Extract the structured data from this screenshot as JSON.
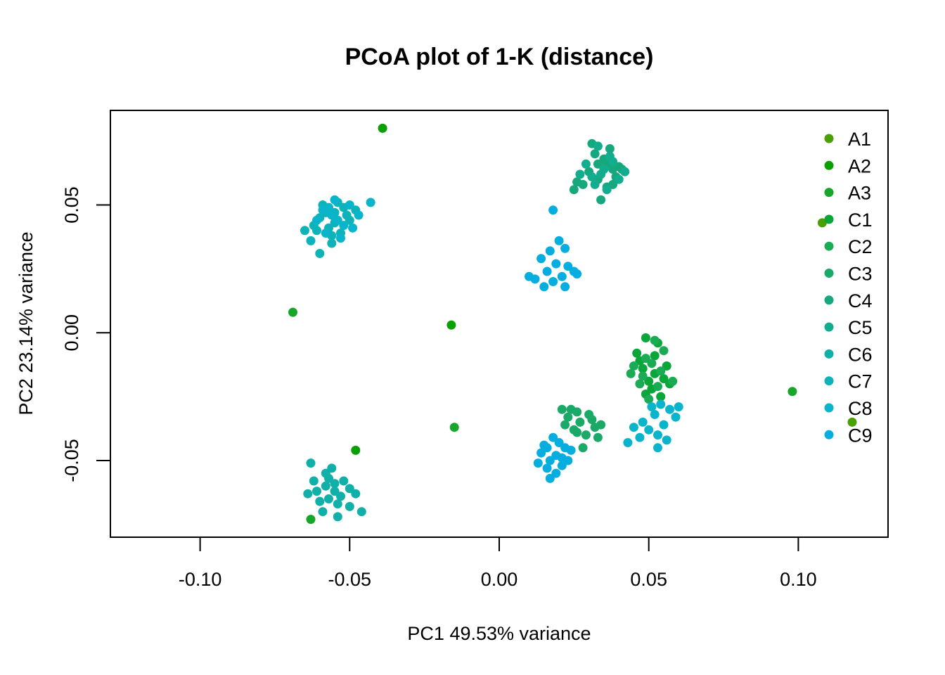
{
  "chart_data": {
    "type": "scatter",
    "title": "PCoA plot of 1-K (distance)",
    "xlabel": "PC1  49.53% variance",
    "ylabel": "PC2  23.14% variance",
    "xlim": [
      -0.13,
      0.13
    ],
    "ylim": [
      -0.08,
      0.087
    ],
    "x_ticks": [
      -0.1,
      -0.05,
      0.0,
      0.05,
      0.1
    ],
    "x_tick_labels": [
      "-0.10",
      "-0.05",
      "0.00",
      "0.05",
      "0.10"
    ],
    "y_ticks": [
      -0.05,
      0.0,
      0.05
    ],
    "y_tick_labels": [
      "-0.05",
      "0.00",
      "0.05"
    ],
    "grid": false,
    "legend_position": "top-right",
    "series": [
      {
        "name": "A1",
        "color": "#4a9f05",
        "points": [
          [
            0.108,
            0.043
          ],
          [
            0.118,
            -0.035
          ]
        ]
      },
      {
        "name": "A2",
        "color": "#0aa000",
        "points": [
          [
            -0.039,
            0.08
          ],
          [
            -0.016,
            0.003
          ],
          [
            -0.048,
            -0.046
          ]
        ]
      },
      {
        "name": "A3",
        "color": "#17a52a",
        "points": [
          [
            -0.069,
            0.008
          ],
          [
            0.098,
            -0.023
          ],
          [
            -0.063,
            -0.073
          ],
          [
            -0.015,
            -0.037
          ]
        ]
      },
      {
        "name": "C1",
        "color": "#0ba63a",
        "points": [
          [
            0.049,
            -0.002
          ],
          [
            0.052,
            -0.009
          ],
          [
            0.048,
            -0.014
          ],
          [
            0.055,
            -0.018
          ],
          [
            0.051,
            -0.022
          ],
          [
            0.047,
            -0.011
          ],
          [
            0.053,
            -0.004
          ],
          [
            0.056,
            -0.013
          ],
          [
            0.05,
            -0.019
          ],
          [
            0.054,
            -0.025
          ],
          [
            0.046,
            -0.008
          ],
          [
            0.052,
            -0.016
          ],
          [
            0.057,
            -0.02
          ],
          [
            0.049,
            -0.024
          ]
        ]
      },
      {
        "name": "C2",
        "color": "#1cab55",
        "points": [
          [
            0.045,
            -0.013
          ],
          [
            0.051,
            -0.012
          ],
          [
            0.053,
            -0.021
          ],
          [
            0.048,
            -0.017
          ],
          [
            0.055,
            -0.007
          ],
          [
            0.05,
            -0.026
          ],
          [
            0.044,
            -0.016
          ],
          [
            0.058,
            -0.019
          ],
          [
            0.052,
            -0.003
          ],
          [
            0.047,
            -0.02
          ],
          [
            0.054,
            -0.015
          ],
          [
            0.049,
            -0.01
          ]
        ]
      },
      {
        "name": "C3",
        "color": "#1aa966",
        "points": [
          [
            0.024,
            -0.03
          ],
          [
            0.027,
            -0.035
          ],
          [
            0.03,
            -0.032
          ],
          [
            0.022,
            -0.036
          ],
          [
            0.025,
            -0.038
          ],
          [
            0.029,
            -0.04
          ],
          [
            0.032,
            -0.037
          ],
          [
            0.021,
            -0.03
          ],
          [
            0.026,
            -0.031
          ],
          [
            0.033,
            -0.041
          ],
          [
            0.028,
            -0.045
          ],
          [
            0.023,
            -0.033
          ],
          [
            0.031,
            -0.034
          ],
          [
            0.034,
            -0.036
          ],
          [
            0.026,
            -0.039
          ]
        ]
      },
      {
        "name": "C4",
        "color": "#16a87c",
        "points": [
          [
            0.031,
            0.074
          ],
          [
            0.035,
            0.068
          ],
          [
            0.038,
            0.064
          ],
          [
            0.033,
            0.06
          ],
          [
            0.036,
            0.057
          ],
          [
            0.028,
            0.058
          ],
          [
            0.025,
            0.056
          ],
          [
            0.034,
            0.052
          ],
          [
            0.039,
            0.061
          ],
          [
            0.04,
            0.065
          ],
          [
            0.032,
            0.07
          ],
          [
            0.037,
            0.072
          ],
          [
            0.03,
            0.063
          ],
          [
            0.036,
            0.066
          ],
          [
            0.041,
            0.064
          ],
          [
            0.026,
            0.059
          ],
          [
            0.033,
            0.066
          ],
          [
            0.038,
            0.058
          ]
        ]
      },
      {
        "name": "C5",
        "color": "#12ad8e",
        "points": [
          [
            0.034,
            0.062
          ],
          [
            0.029,
            0.066
          ],
          [
            0.037,
            0.069
          ],
          [
            0.032,
            0.058
          ],
          [
            0.035,
            0.064
          ],
          [
            0.04,
            0.06
          ],
          [
            0.031,
            0.061
          ],
          [
            0.036,
            0.056
          ],
          [
            0.033,
            0.073
          ],
          [
            0.038,
            0.067
          ],
          [
            0.042,
            0.063
          ],
          [
            0.027,
            0.062
          ]
        ]
      },
      {
        "name": "C6",
        "color": "#10b0a8",
        "points": [
          [
            -0.063,
            -0.051
          ],
          [
            -0.058,
            -0.055
          ],
          [
            -0.055,
            -0.059
          ],
          [
            -0.061,
            -0.062
          ],
          [
            -0.057,
            -0.065
          ],
          [
            -0.052,
            -0.058
          ],
          [
            -0.054,
            -0.067
          ],
          [
            -0.059,
            -0.07
          ],
          [
            -0.05,
            -0.061
          ],
          [
            -0.056,
            -0.053
          ],
          [
            -0.062,
            -0.058
          ],
          [
            -0.053,
            -0.064
          ],
          [
            -0.048,
            -0.063
          ],
          [
            -0.06,
            -0.066
          ],
          [
            -0.055,
            -0.062
          ],
          [
            -0.058,
            -0.06
          ],
          [
            -0.05,
            -0.068
          ],
          [
            -0.057,
            -0.057
          ],
          [
            -0.046,
            -0.07
          ],
          [
            -0.054,
            -0.072
          ],
          [
            -0.064,
            -0.063
          ]
        ]
      },
      {
        "name": "C7",
        "color": "#0db3b8",
        "points": [
          [
            -0.058,
            0.047
          ],
          [
            -0.055,
            0.043
          ],
          [
            -0.061,
            0.04
          ],
          [
            -0.052,
            0.049
          ],
          [
            -0.056,
            0.038
          ],
          [
            -0.06,
            0.045
          ],
          [
            -0.054,
            0.051
          ],
          [
            -0.05,
            0.044
          ],
          [
            -0.057,
            0.041
          ],
          [
            -0.062,
            0.042
          ],
          [
            -0.053,
            0.039
          ],
          [
            -0.059,
            0.05
          ],
          [
            -0.055,
            0.047
          ],
          [
            -0.063,
            0.036
          ],
          [
            -0.051,
            0.046
          ],
          [
            -0.065,
            0.04
          ],
          [
            -0.048,
            0.048
          ],
          [
            -0.056,
            0.035
          ],
          [
            -0.06,
            0.031
          ]
        ]
      },
      {
        "name": "C8",
        "color": "#0ab5cc",
        "points": [
          [
            -0.056,
            0.046
          ],
          [
            -0.052,
            0.042
          ],
          [
            -0.059,
            0.048
          ],
          [
            -0.054,
            0.044
          ],
          [
            -0.058,
            0.039
          ],
          [
            -0.05,
            0.05
          ],
          [
            -0.055,
            0.052
          ],
          [
            -0.061,
            0.044
          ],
          [
            -0.047,
            0.046
          ],
          [
            -0.043,
            0.051
          ],
          [
            -0.057,
            0.049
          ],
          [
            -0.053,
            0.037
          ],
          [
            -0.049,
            0.041
          ],
          [
            0.052,
            -0.032
          ],
          [
            0.055,
            -0.036
          ],
          [
            0.05,
            -0.038
          ],
          [
            0.057,
            -0.03
          ],
          [
            0.053,
            -0.04
          ],
          [
            0.048,
            -0.035
          ],
          [
            0.056,
            -0.042
          ],
          [
            0.051,
            -0.029
          ],
          [
            0.059,
            -0.033
          ],
          [
            0.045,
            -0.037
          ],
          [
            0.054,
            -0.028
          ],
          [
            0.047,
            -0.041
          ],
          [
            0.06,
            -0.029
          ],
          [
            0.043,
            -0.043
          ],
          [
            0.053,
            -0.045
          ]
        ]
      },
      {
        "name": "C9",
        "color": "#06aee0",
        "points": [
          [
            0.02,
            0.036
          ],
          [
            0.017,
            0.032
          ],
          [
            0.022,
            0.033
          ],
          [
            0.014,
            0.029
          ],
          [
            0.019,
            0.027
          ],
          [
            0.023,
            0.026
          ],
          [
            0.016,
            0.024
          ],
          [
            0.021,
            0.022
          ],
          [
            0.018,
            0.02
          ],
          [
            0.025,
            0.024
          ],
          [
            0.012,
            0.021
          ],
          [
            0.015,
            0.018
          ],
          [
            0.026,
            0.023
          ],
          [
            0.022,
            0.018
          ],
          [
            0.01,
            0.022
          ],
          [
            0.018,
            0.048
          ],
          [
            0.016,
            -0.045
          ],
          [
            0.019,
            -0.048
          ],
          [
            0.021,
            -0.052
          ],
          [
            0.017,
            -0.05
          ],
          [
            0.014,
            -0.047
          ],
          [
            0.022,
            -0.045
          ],
          [
            0.019,
            -0.055
          ],
          [
            0.016,
            -0.053
          ],
          [
            0.024,
            -0.046
          ],
          [
            0.018,
            -0.041
          ],
          [
            0.013,
            -0.051
          ],
          [
            0.021,
            -0.049
          ],
          [
            0.015,
            -0.044
          ],
          [
            0.023,
            -0.05
          ],
          [
            0.017,
            -0.057
          ],
          [
            0.02,
            -0.043
          ]
        ]
      }
    ]
  }
}
